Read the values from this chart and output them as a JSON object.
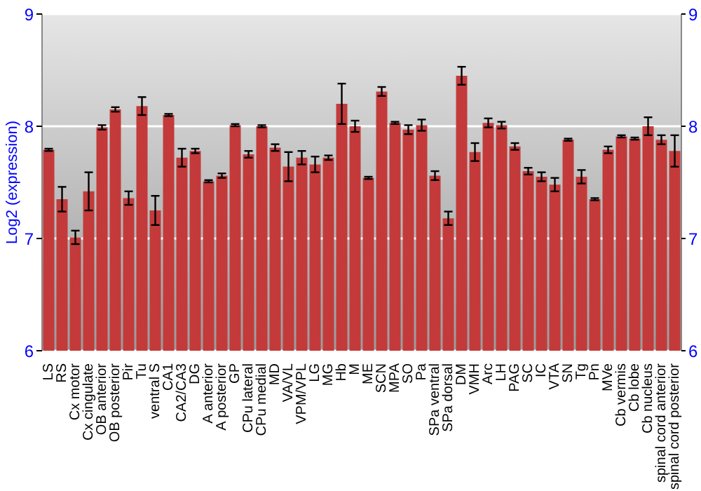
{
  "chart_data": {
    "type": "bar",
    "ylabel": "Log2 (expression)",
    "categories": [
      "LS",
      "RS",
      "Cx motor",
      "Cx cingulate",
      "OB anterior",
      "OB posterior",
      "Pir",
      "Tu",
      "ventral S",
      "CA1",
      "CA2/CA3",
      "DG",
      "A anterior",
      "A posterior",
      "GP",
      "CPu lateral",
      "CPu medial",
      "MD",
      "VA/VL",
      "VPM/VPL",
      "LG",
      "MG",
      "Hb",
      "M",
      "ME",
      "SCN",
      "MPA",
      "SO",
      "Pa",
      "SPa ventral",
      "SPa dorsal",
      "DM",
      "VMH",
      "Arc",
      "LH",
      "PAG",
      "SC",
      "IC",
      "VTA",
      "SN",
      "Tg",
      "Pn",
      "MVe",
      "Cb vermis",
      "Cb lobe",
      "Cb nucleus",
      "spinal cord anterior",
      "spinal cord posterior"
    ],
    "values": [
      7.79,
      7.35,
      7.01,
      7.42,
      7.99,
      8.15,
      7.36,
      8.18,
      7.25,
      8.1,
      7.72,
      7.78,
      7.51,
      7.56,
      8.01,
      7.75,
      8.0,
      7.81,
      7.64,
      7.72,
      7.66,
      7.72,
      8.2,
      8.0,
      7.54,
      8.31,
      8.03,
      7.97,
      8.01,
      7.56,
      7.18,
      8.45,
      7.77,
      8.03,
      8.01,
      7.82,
      7.6,
      7.55,
      7.48,
      7.88,
      7.55,
      7.35,
      7.79,
      7.91,
      7.89,
      8.0,
      7.88,
      7.78
    ],
    "errors": [
      0.01,
      0.11,
      0.06,
      0.17,
      0.02,
      0.02,
      0.06,
      0.08,
      0.13,
      0.01,
      0.08,
      0.02,
      0.01,
      0.02,
      0.01,
      0.03,
      0.01,
      0.03,
      0.13,
      0.06,
      0.07,
      0.02,
      0.18,
      0.05,
      0.01,
      0.04,
      0.01,
      0.04,
      0.05,
      0.04,
      0.06,
      0.08,
      0.08,
      0.04,
      0.03,
      0.03,
      0.03,
      0.04,
      0.06,
      0.01,
      0.06,
      0.01,
      0.03,
      0.01,
      0.01,
      0.08,
      0.04,
      0.14
    ],
    "color": "#c43a3a",
    "ylim": [
      6,
      9
    ],
    "yticks": [
      6,
      7,
      8,
      9
    ],
    "y2lim": [
      6,
      9
    ],
    "y2ticks": [
      6,
      7,
      8,
      9
    ],
    "grid": "y"
  }
}
